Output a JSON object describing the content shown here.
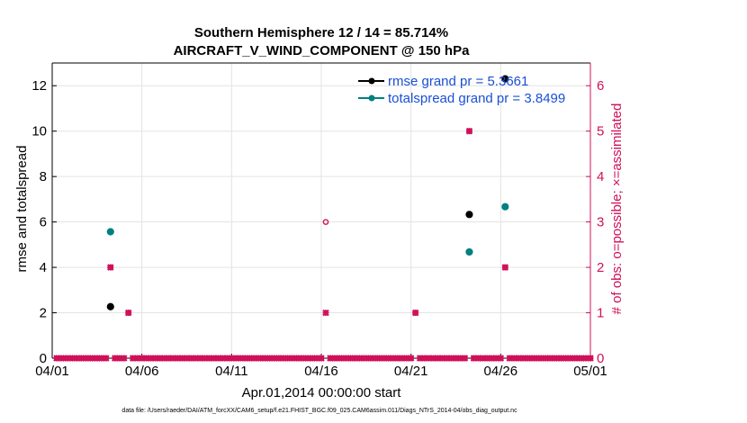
{
  "chart_data": {
    "type": "scatter",
    "title": "Southern Hemisphere 12 / 14 = 85.714%",
    "subtitle": "AIRCRAFT_V_WIND_COMPONENT @ 150 hPa",
    "xlabel": "Apr.01,2014 00:00:00 start",
    "ylabel_left": "rmse and totalspread",
    "ylabel_right": "# of obs: o=possible; ×=assimilated",
    "footnote": "data file: /Users/raeder/DAI/ATM_forcXX/CAM6_setup/f.e21.FHIST_BGC.f09_025.CAM6assim.011/Diags_NTrS_2014-04/obs_diag_output.nc",
    "x_ticks": [
      "04/01",
      "04/06",
      "04/11",
      "04/16",
      "04/21",
      "04/26",
      "05/01"
    ],
    "x_range_days": [
      0,
      30
    ],
    "ylim_left": [
      0,
      13
    ],
    "yticks_left": [
      0,
      2,
      4,
      6,
      8,
      10,
      12
    ],
    "ylim_right": [
      0,
      6.5
    ],
    "yticks_right": [
      0,
      1,
      2,
      3,
      4,
      5,
      6
    ],
    "grid": true,
    "legend_position": "top-right",
    "colors": {
      "rmse": "#000000",
      "totalspread": "#008080",
      "obs": "#d0105a"
    },
    "series": [
      {
        "name": "rmse grand pr = 5.3661",
        "axis": "left",
        "points": [
          [
            3.25,
            2.27
          ],
          [
            23.25,
            6.33
          ],
          [
            25.25,
            12.3
          ]
        ]
      },
      {
        "name": "totalspread grand pr = 3.8499",
        "axis": "left",
        "points": [
          [
            3.25,
            5.57
          ],
          [
            23.25,
            4.68
          ],
          [
            25.25,
            6.67
          ]
        ]
      }
    ],
    "obs_possible": {
      "axis": "right",
      "x_start": 0.25,
      "x_step": 0.25,
      "x_end": 30.0,
      "default": 0,
      "nonzero": [
        [
          3.25,
          2
        ],
        [
          4.25,
          1
        ],
        [
          15.25,
          3
        ],
        [
          20.25,
          1
        ],
        [
          23.25,
          5
        ],
        [
          25.25,
          2
        ]
      ]
    },
    "obs_assimilated": {
      "axis": "right",
      "x_start": 0.25,
      "x_step": 0.25,
      "x_end": 30.0,
      "default": 0,
      "nonzero": [
        [
          3.25,
          2
        ],
        [
          4.25,
          1
        ],
        [
          15.25,
          1
        ],
        [
          20.25,
          1
        ],
        [
          23.25,
          5
        ],
        [
          25.25,
          2
        ]
      ]
    }
  }
}
